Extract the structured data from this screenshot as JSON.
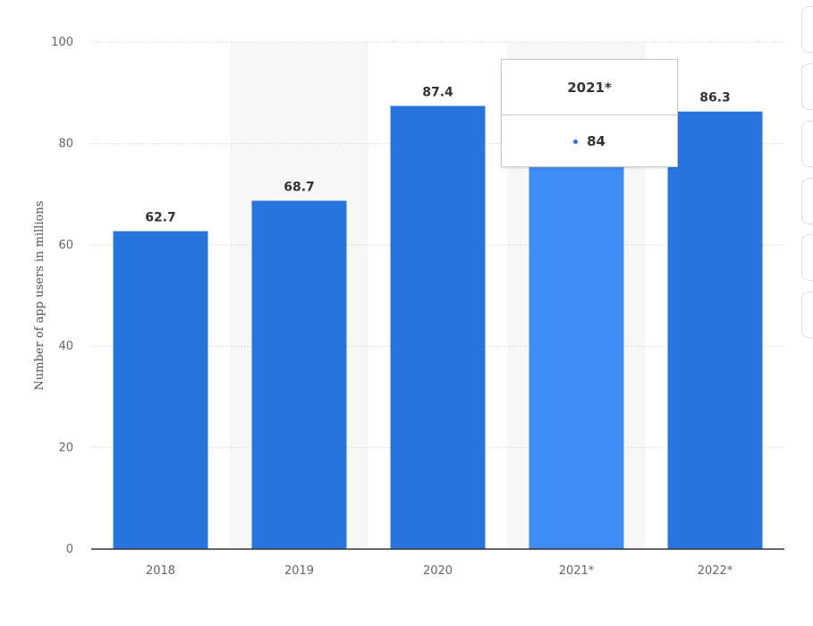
{
  "chart_data": {
    "type": "bar",
    "categories": [
      "2018",
      "2019",
      "2020",
      "2021*",
      "2022*"
    ],
    "values": [
      62.7,
      68.7,
      87.4,
      84,
      86.3
    ],
    "data_labels": [
      "62.7",
      "68.7",
      "87.4",
      "",
      "86.3"
    ],
    "title": "",
    "xlabel": "",
    "ylabel": "Number of app users in millions",
    "ylim": [
      0,
      100
    ],
    "yticks": [
      "0",
      "20",
      "40",
      "60",
      "80",
      "100"
    ],
    "grid": true,
    "highlighted_category": "2021*",
    "colors": {
      "bar": "#2876dd",
      "bar_hover": "#418bf6",
      "column_shade": "#f7f7f8",
      "axis": "#333333",
      "grid": "#cccccc"
    }
  },
  "tooltip": {
    "category": "2021*",
    "value": "84"
  }
}
